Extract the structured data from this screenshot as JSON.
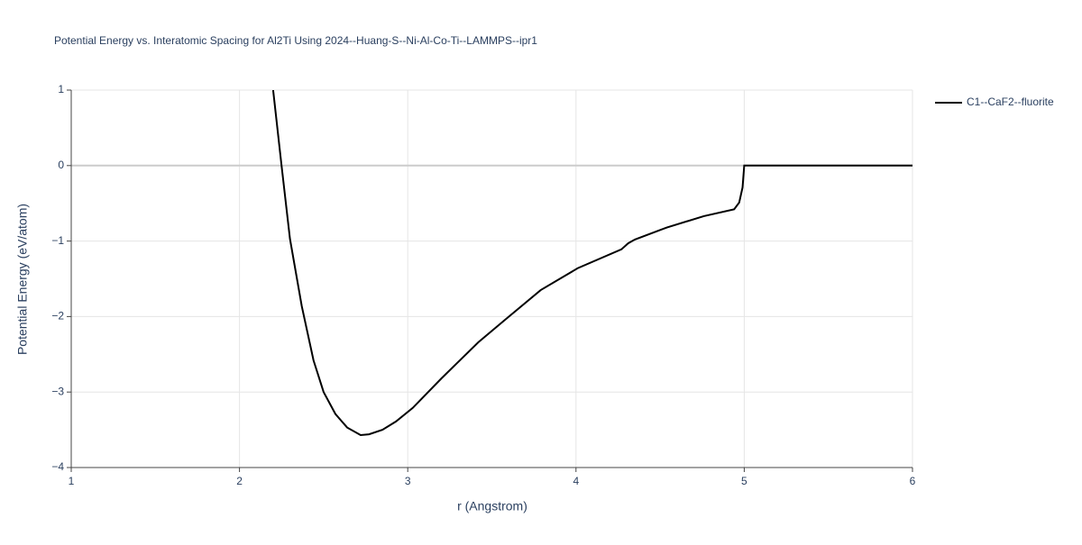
{
  "chart_data": {
    "type": "line",
    "title": "Potential Energy vs. Interatomic Spacing for Al2Ti Using 2024--Huang-S--Ni-Al-Co-Ti--LAMMPS--ipr1",
    "x_label": "r (Angstrom)",
    "y_label": "Potential Energy (eV/atom)",
    "x": [
      2.2,
      2.25,
      2.3,
      2.37,
      2.44,
      2.5,
      2.57,
      2.64,
      2.72,
      2.77,
      2.85,
      2.93,
      3.03,
      3.2,
      3.42,
      3.58,
      3.79,
      4.01,
      4.27,
      4.31,
      4.35,
      4.54,
      4.76,
      4.94,
      4.97,
      4.99,
      5.0,
      6.0
    ],
    "series": [
      {
        "name": "C1--CaF2--fluorite",
        "color": "#000000",
        "values": [
          1.0,
          0,
          -0.97,
          -1.86,
          -2.58,
          -3.0,
          -3.29,
          -3.47,
          -3.57,
          -3.56,
          -3.5,
          -3.39,
          -3.21,
          -2.82,
          -2.34,
          -2.04,
          -1.65,
          -1.36,
          -1.11,
          -1.03,
          -0.98,
          -0.82,
          -0.67,
          -0.58,
          -0.49,
          -0.29,
          0,
          0
        ]
      }
    ],
    "xlim": [
      1,
      6
    ],
    "xticks": [
      1,
      2,
      3,
      4,
      5,
      6
    ],
    "ylim": [
      -4,
      1
    ],
    "yticks": [
      {
        "value": -4,
        "label": "−4"
      },
      {
        "value": -3,
        "label": "−3"
      },
      {
        "value": -2,
        "label": "−2"
      },
      {
        "value": -1,
        "label": "−1"
      },
      0,
      1
    ],
    "grid": true,
    "legend": "right"
  }
}
